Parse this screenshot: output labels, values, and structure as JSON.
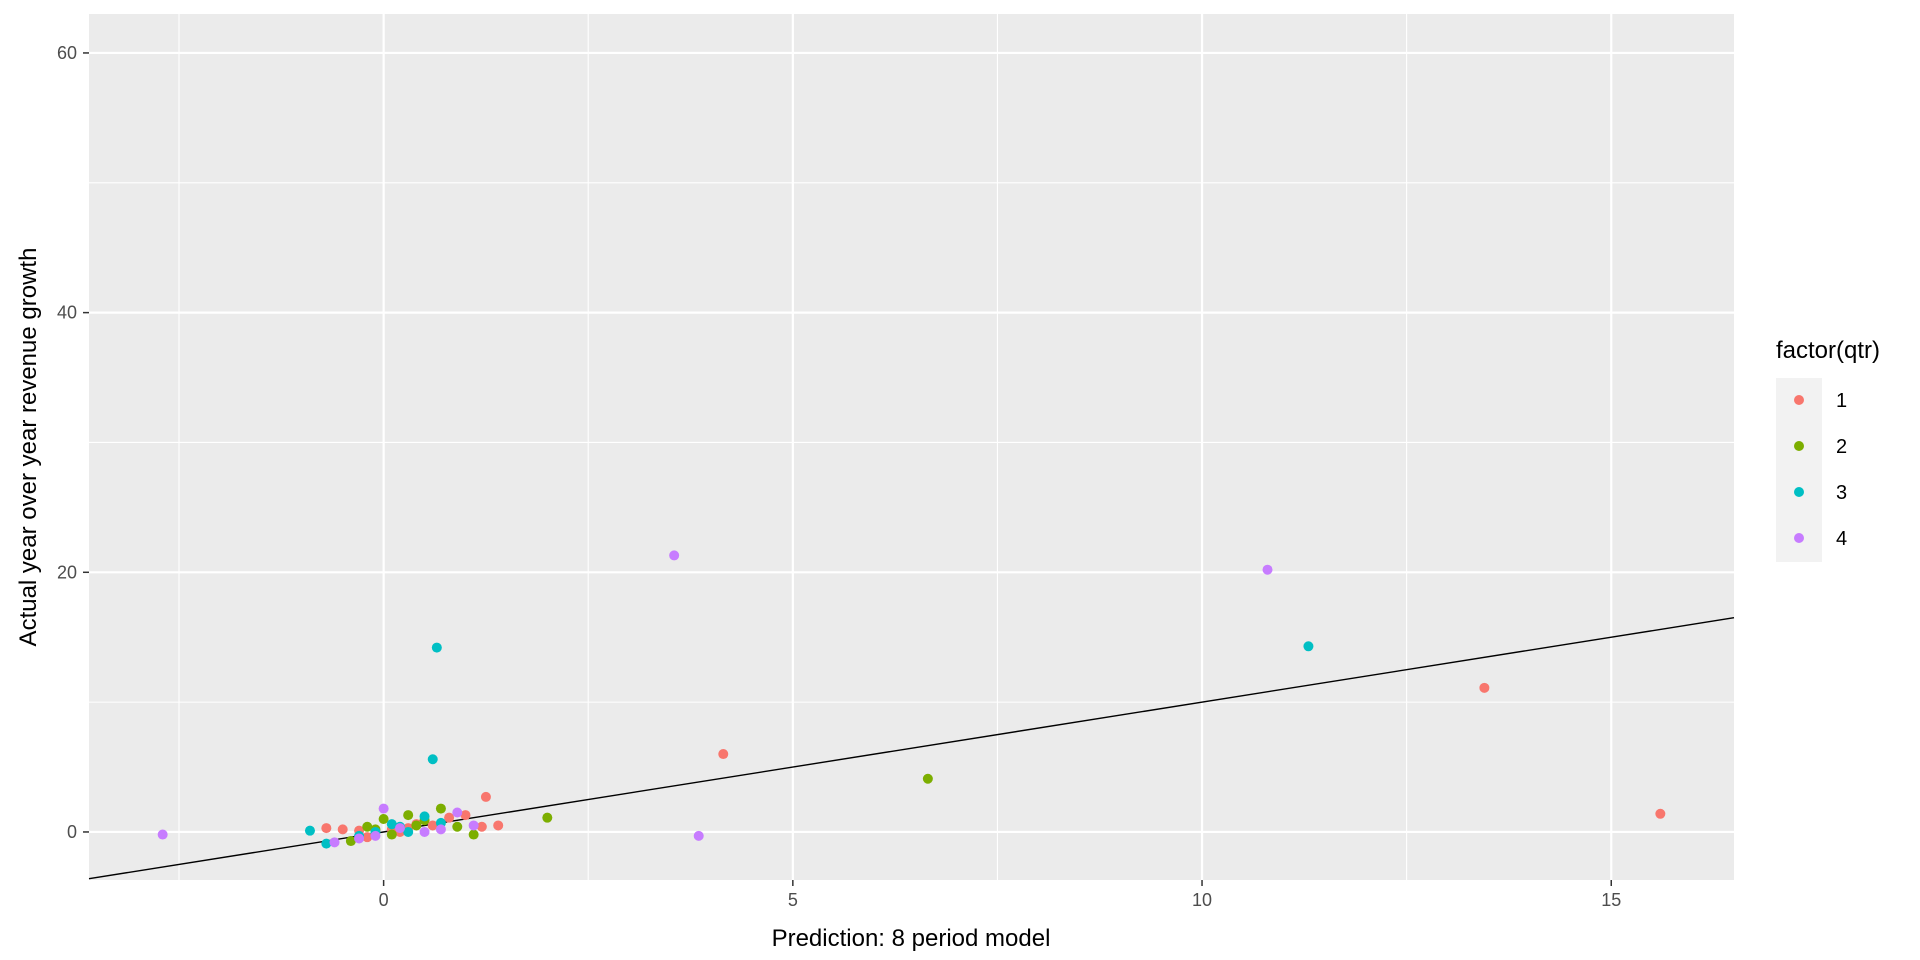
{
  "chart_data": {
    "type": "scatter",
    "title": "",
    "xlabel": "Prediction: 8 period model",
    "ylabel": "Actual year over year revenue growth",
    "xlim": [
      -3.6,
      16.5
    ],
    "ylim": [
      -3.7,
      63.0
    ],
    "x_ticks": [
      0,
      5,
      10,
      15
    ],
    "y_ticks": [
      0,
      20,
      40,
      60
    ],
    "x_tick_labels": [
      "0",
      "5",
      "10",
      "15"
    ],
    "y_tick_labels": [
      "0",
      "20",
      "40",
      "60"
    ],
    "grid": true,
    "panel_background": "#ebebeb",
    "reference_line": {
      "intercept": 0,
      "slope": 1,
      "color": "#000000"
    },
    "legend": {
      "title": "factor(qtr)",
      "position": "right",
      "entries": [
        "1",
        "2",
        "3",
        "4"
      ]
    },
    "series": [
      {
        "name": "1",
        "color": "#F8766D",
        "points": [
          [
            -0.7,
            0.3
          ],
          [
            -0.5,
            0.2
          ],
          [
            -0.3,
            0.1
          ],
          [
            -0.1,
            0.1
          ],
          [
            0.1,
            0.2
          ],
          [
            0.3,
            0.3
          ],
          [
            0.4,
            0.6
          ],
          [
            0.6,
            0.5
          ],
          [
            0.8,
            1.1
          ],
          [
            1.0,
            1.3
          ],
          [
            1.2,
            0.4
          ],
          [
            1.25,
            2.7
          ],
          [
            1.4,
            0.5
          ],
          [
            4.15,
            6.0
          ],
          [
            13.45,
            11.1
          ],
          [
            15.6,
            1.4
          ],
          [
            0.2,
            0.0
          ],
          [
            -0.2,
            -0.4
          ]
        ]
      },
      {
        "name": "2",
        "color": "#7CAE00",
        "points": [
          [
            -0.4,
            -0.7
          ],
          [
            -0.2,
            0.4
          ],
          [
            0.0,
            1.0
          ],
          [
            0.1,
            -0.2
          ],
          [
            0.3,
            1.3
          ],
          [
            0.5,
            0.9
          ],
          [
            0.7,
            1.8
          ],
          [
            0.9,
            0.4
          ],
          [
            1.1,
            -0.2
          ],
          [
            2.0,
            1.1
          ],
          [
            6.65,
            4.1
          ],
          [
            -0.1,
            0.2
          ],
          [
            0.4,
            0.5
          ]
        ]
      },
      {
        "name": "3",
        "color": "#00BFC4",
        "points": [
          [
            -0.9,
            0.1
          ],
          [
            -0.7,
            -0.9
          ],
          [
            -0.3,
            -0.3
          ],
          [
            -0.1,
            0.0
          ],
          [
            0.2,
            0.4
          ],
          [
            0.5,
            1.2
          ],
          [
            0.6,
            5.6
          ],
          [
            0.65,
            14.2
          ],
          [
            0.7,
            0.7
          ],
          [
            11.3,
            14.3
          ],
          [
            0.3,
            0.0
          ],
          [
            0.1,
            0.6
          ]
        ]
      },
      {
        "name": "4",
        "color": "#C77CFF",
        "points": [
          [
            -2.7,
            -0.2
          ],
          [
            -0.6,
            -0.8
          ],
          [
            -0.3,
            -0.5
          ],
          [
            0.0,
            1.8
          ],
          [
            0.2,
            0.3
          ],
          [
            0.5,
            0.0
          ],
          [
            0.9,
            1.5
          ],
          [
            1.1,
            0.5
          ],
          [
            3.55,
            21.3
          ],
          [
            3.85,
            -0.3
          ],
          [
            10.8,
            20.2
          ],
          [
            -0.1,
            -0.3
          ],
          [
            0.7,
            0.2
          ]
        ]
      }
    ]
  }
}
